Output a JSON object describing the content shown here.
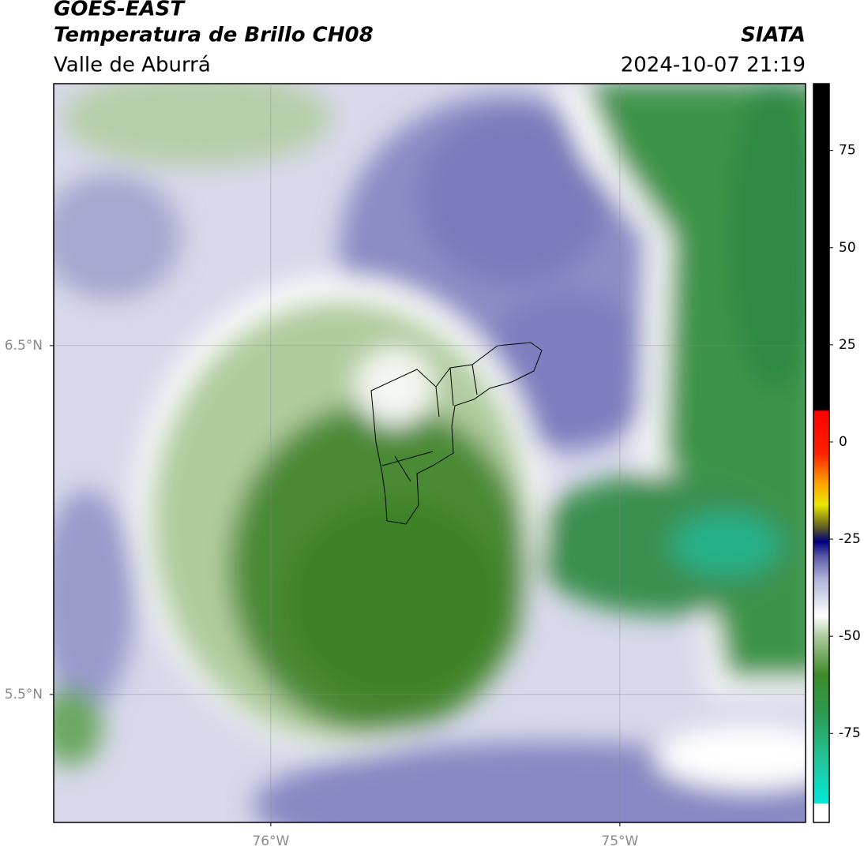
{
  "header": {
    "title": "GOES-EAST",
    "subtitle": "Temperatura de Brillo CH08",
    "region": "Valle de Aburrá",
    "source": "SIATA",
    "datetime": "2024-10-07 21:19"
  },
  "map": {
    "xlim": [
      -76.622,
      -74.468
    ],
    "ylim": [
      5.133,
      7.251
    ],
    "xticks": [
      {
        "value": -76,
        "label": "76°W"
      },
      {
        "value": -75,
        "label": "75°W"
      }
    ],
    "yticks": [
      {
        "value": 6.5,
        "label": "6.5°N"
      },
      {
        "value": 5.5,
        "label": "5.5°N"
      }
    ],
    "grid": true
  },
  "colorbar": {
    "lim": [
      -97.9,
      92.2
    ],
    "ticks": [
      75,
      50,
      25,
      0,
      -25,
      -50,
      -75
    ]
  }
}
